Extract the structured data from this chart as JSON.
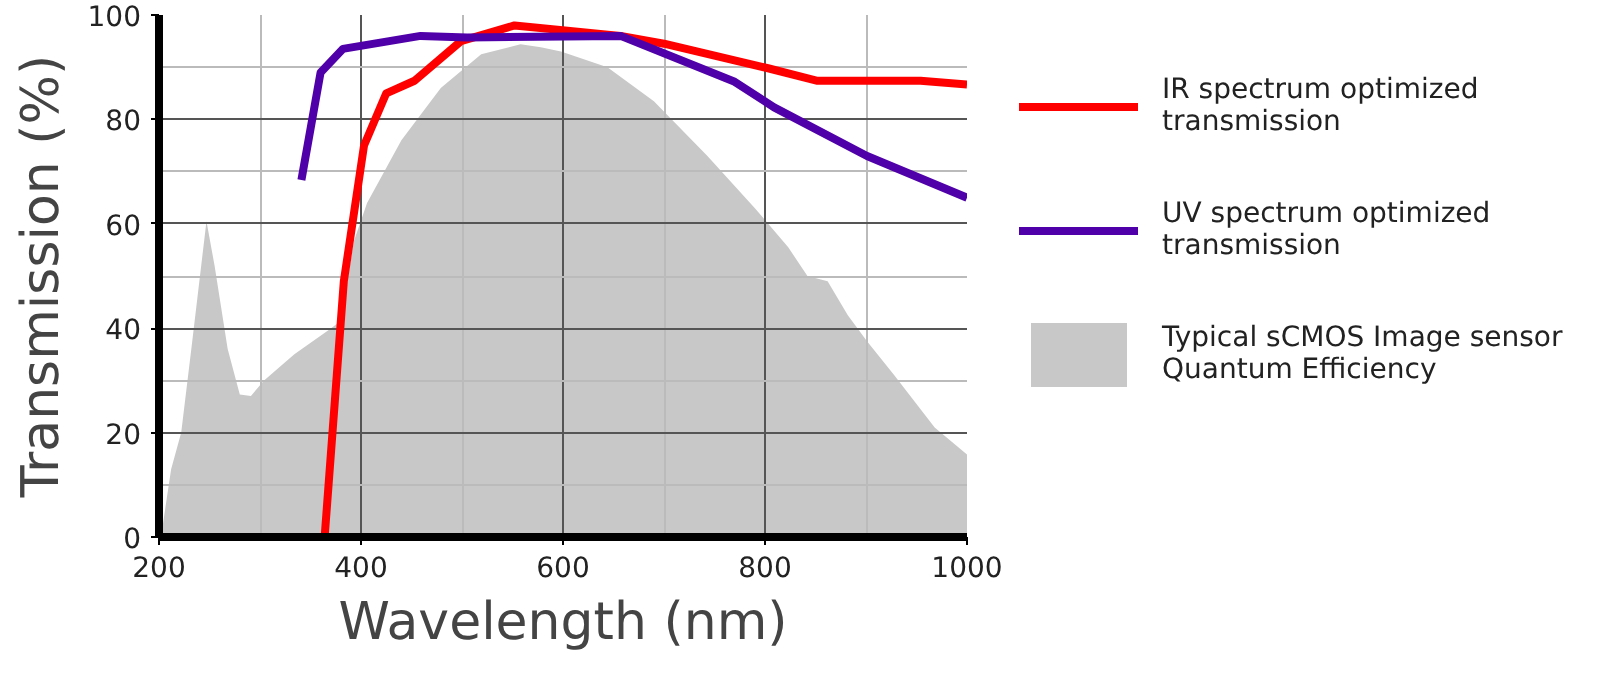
{
  "chart_data": {
    "type": "line",
    "xlabel": "Wavelength (nm)",
    "ylabel": "Transmission (%)",
    "xlim": [
      200,
      1000
    ],
    "xticks": [
      200,
      400,
      600,
      800,
      1000
    ],
    "ylim": [
      0,
      100
    ],
    "yticks": [
      0,
      20,
      40,
      60,
      80,
      100
    ],
    "grid": true,
    "legend": "right",
    "line_style": "solid",
    "marker": "none",
    "series": [
      {
        "name": "IR spectrum optimized\ntransmission",
        "color": "#ff0000",
        "x": [
          364,
          383,
          403,
          425,
          453,
          499,
          552,
          657,
          700,
          803,
          852,
          954,
          1000
        ],
        "values": [
          0,
          49,
          75,
          85,
          87.4,
          95,
          98,
          96,
          94.5,
          89.8,
          87.4,
          87.4,
          86.7
        ]
      },
      {
        "name": "UV spectrum optimized\ntransmission",
        "color": "#5000a8",
        "x": [
          341,
          360,
          382,
          459,
          505,
          657,
          770,
          809,
          901,
          1000
        ],
        "values": [
          68.4,
          89,
          93.5,
          96,
          95.7,
          96,
          87.2,
          82.3,
          73,
          65
        ]
      },
      {
        "name": "Typical sCMOS Image sensor\nQuantum Efficiency",
        "type": "area",
        "color": "#c8c8c8",
        "x": [
          202,
          212,
          222,
          232,
          247,
          255,
          268,
          280,
          291,
          304,
          334,
          367,
          380,
          393,
          406,
          440,
          479,
          519,
          558,
          578,
          598,
          644,
          690,
          743,
          790,
          823,
          842,
          862,
          882,
          901,
          928,
          968,
          1000
        ],
        "values": [
          0,
          13,
          20,
          36,
          60.5,
          52,
          36,
          27.3,
          27,
          30,
          35,
          39.5,
          41.4,
          56.7,
          64,
          76,
          86,
          92.5,
          94.4,
          93.8,
          93,
          90,
          83.5,
          73,
          63,
          55.5,
          50,
          49,
          42.5,
          37.5,
          31,
          21,
          15.8
        ]
      }
    ]
  }
}
